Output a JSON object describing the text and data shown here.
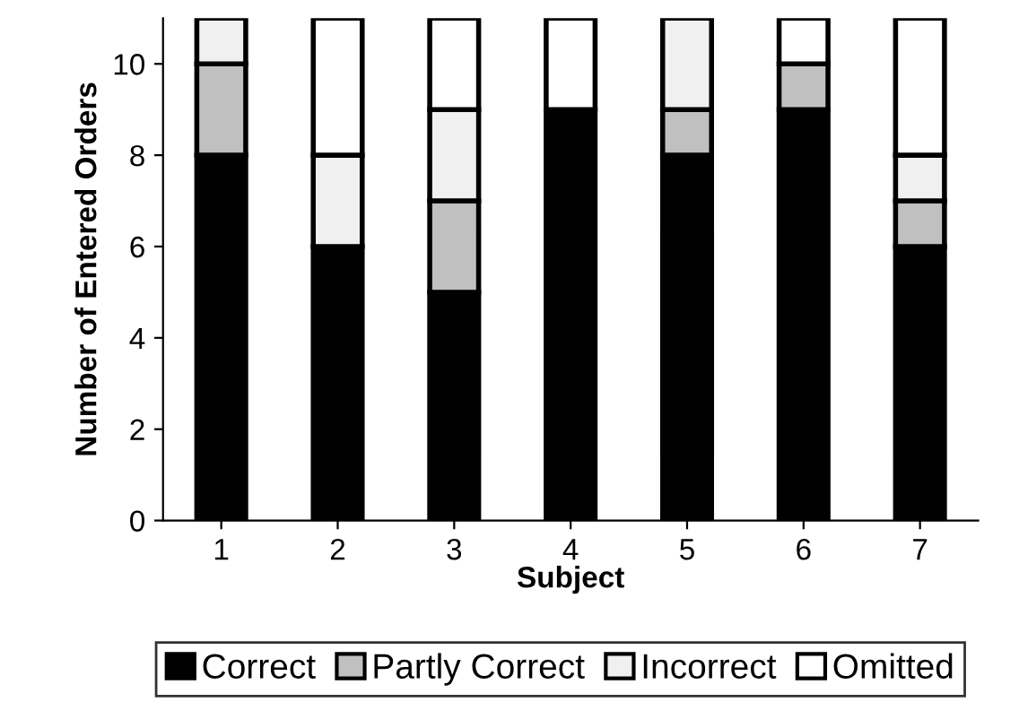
{
  "chart_data": {
    "type": "bar",
    "stacked": true,
    "xlabel": "Subject",
    "ylabel": "Number of Entered Orders",
    "categories": [
      "1",
      "2",
      "3",
      "4",
      "5",
      "6",
      "7"
    ],
    "series": [
      {
        "name": "Correct",
        "color": "#000000",
        "values": [
          8,
          6,
          5,
          9,
          8,
          9,
          6
        ]
      },
      {
        "name": "Partly Correct",
        "color": "#c0c0c0",
        "values": [
          2,
          0,
          2,
          0,
          1,
          1,
          1
        ]
      },
      {
        "name": "Incorrect",
        "color": "#f0f0f0",
        "values": [
          1,
          2,
          2,
          0,
          2,
          0,
          1
        ]
      },
      {
        "name": "Omitted",
        "color": "#ffffff",
        "values": [
          0,
          3,
          2,
          2,
          0,
          1,
          3
        ]
      }
    ],
    "ylim": [
      0,
      11
    ],
    "yticks": [
      0,
      2,
      4,
      6,
      8,
      10
    ],
    "grid": false,
    "legend": "bottom"
  }
}
